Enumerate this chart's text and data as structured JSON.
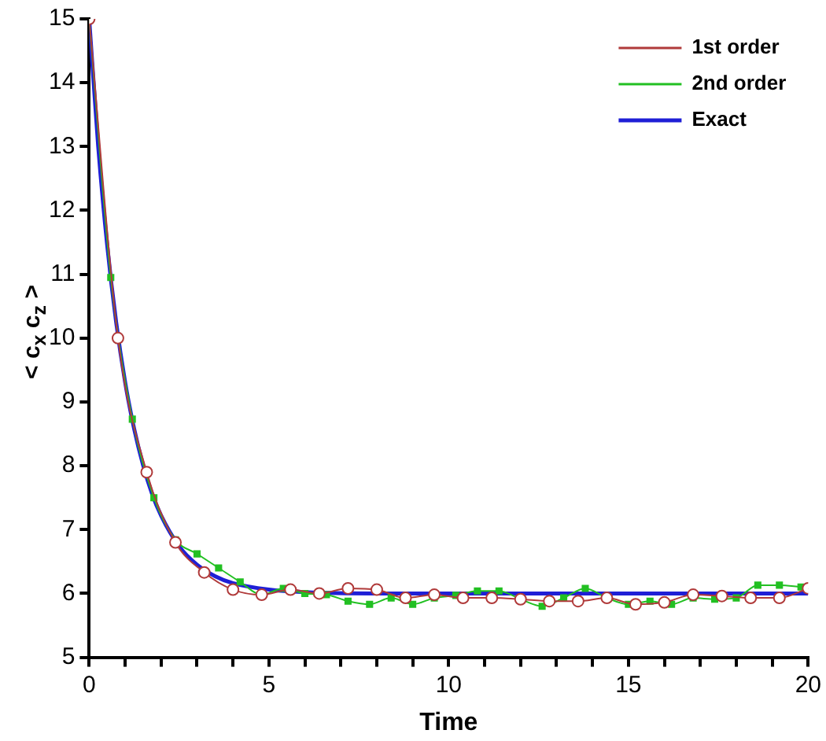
{
  "chart_data": {
    "type": "line",
    "xlabel": "Time",
    "ylabel": "< c$_{x}$ c$_{z}$ >",
    "xlim": [
      0,
      20
    ],
    "xticks": [
      0,
      {
        "value": 1,
        "label": null
      },
      {
        "value": 2,
        "label": null
      },
      {
        "value": 3,
        "label": null
      },
      {
        "value": 4,
        "label": null
      },
      5,
      {
        "value": 6,
        "label": null
      },
      {
        "value": 7,
        "label": null
      },
      {
        "value": 8,
        "label": null
      },
      {
        "value": 9,
        "label": null
      },
      10,
      {
        "value": 11,
        "label": null
      },
      {
        "value": 12,
        "label": null
      },
      {
        "value": 13,
        "label": null
      },
      {
        "value": 14,
        "label": null
      },
      15,
      {
        "value": 16,
        "label": null
      },
      {
        "value": 17,
        "label": null
      },
      {
        "value": 18,
        "label": null
      },
      {
        "value": 19,
        "label": null
      },
      20
    ],
    "ylim": [
      5,
      15
    ],
    "yticks": [
      5,
      6,
      7,
      8,
      9,
      10,
      11,
      12,
      13,
      14,
      15
    ],
    "grid": false,
    "legend": "top right",
    "series": [
      {
        "name": "1st order",
        "color": "#b03a3a",
        "marker": "circle",
        "x": [
          0,
          0.8,
          1.6,
          2.4,
          3.2,
          4.0,
          4.8,
          5.6,
          6.4,
          7.2,
          8.0,
          8.8,
          9.6,
          10.4,
          11.2,
          12.0,
          12.8,
          13.6,
          14.4,
          15.2,
          16.0,
          16.8,
          17.6,
          18.4,
          19.2,
          20.0
        ],
        "values": [
          15,
          10,
          7.9,
          6.8,
          6.33,
          6.06,
          5.98,
          6.06,
          6.0,
          6.08,
          6.06,
          5.93,
          5.98,
          5.93,
          5.93,
          5.91,
          5.88,
          5.88,
          5.93,
          5.83,
          5.86,
          5.98,
          5.96,
          5.93,
          5.93,
          6.08
        ]
      },
      {
        "name": "2nd order",
        "color": "#22c022",
        "marker": "square",
        "x": [
          0,
          0.6,
          1.2,
          1.8,
          2.4,
          3.0,
          3.6,
          4.2,
          4.8,
          5.4,
          6.0,
          6.6,
          7.2,
          7.8,
          8.4,
          9.0,
          9.6,
          10.2,
          10.8,
          11.4,
          12.0,
          12.6,
          13.2,
          13.8,
          14.4,
          15.0,
          15.6,
          16.2,
          16.8,
          17.4,
          18.0,
          18.6,
          19.2,
          19.8
        ],
        "values": [
          15,
          10.95,
          8.73,
          7.5,
          6.84,
          6.62,
          6.4,
          6.18,
          5.98,
          6.08,
          6.0,
          5.98,
          5.88,
          5.83,
          5.93,
          5.83,
          5.93,
          5.97,
          6.04,
          6.04,
          5.91,
          5.8,
          5.93,
          6.08,
          5.93,
          5.83,
          5.88,
          5.83,
          5.93,
          5.91,
          5.93,
          6.13,
          6.13,
          6.1
        ]
      },
      {
        "name": "Exact",
        "color": "#1f1fd6",
        "marker": "none",
        "x": [
          0,
          0.25,
          0.5,
          0.75,
          1,
          1.25,
          1.5,
          1.75,
          2,
          2.5,
          3,
          3.5,
          4,
          5,
          6,
          8,
          20
        ],
        "values": [
          15,
          13.01,
          11.46,
          10.25,
          9.31,
          8.58,
          8.01,
          7.56,
          7.22,
          6.74,
          6.45,
          6.27,
          6.16,
          6.06,
          6.02,
          6.0,
          6.0
        ]
      }
    ]
  }
}
